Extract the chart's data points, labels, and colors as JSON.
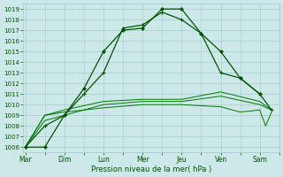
{
  "background_color": "#cce8e8",
  "grid_color": "#aacccc",
  "line_color_dark": "#005500",
  "line_color_mid": "#007700",
  "x_labels": [
    "Mar",
    "Dim",
    "Lun",
    "Mer",
    "Jeu",
    "Ven",
    "Sam"
  ],
  "xlabel": "Pression niveau de la mer( hPa )",
  "ylim": [
    1005.5,
    1019.5
  ],
  "yticks": [
    1006,
    1007,
    1008,
    1009,
    1010,
    1011,
    1012,
    1013,
    1014,
    1015,
    1016,
    1017,
    1018,
    1019
  ],
  "xlim": [
    -0.05,
    6.5
  ],
  "x_tick_pos": [
    0,
    1,
    2,
    3,
    4,
    5,
    6
  ],
  "series1_x": [
    0,
    0.5,
    1,
    1.5,
    2,
    2.5,
    3,
    3.5,
    4,
    4.5,
    5,
    5.5,
    6
  ],
  "series1_y": [
    1006,
    1006,
    1009,
    1011.5,
    1015,
    1017,
    1017.2,
    1019,
    1019,
    1016.7,
    1015,
    1012.5,
    1011
  ],
  "series2_x": [
    0,
    0.5,
    1,
    1.5,
    2,
    2.5,
    3,
    3.5,
    4,
    4.5,
    5,
    5.5,
    6,
    6.3
  ],
  "series2_y": [
    1006,
    1008,
    1009,
    1011,
    1013,
    1017.2,
    1017.5,
    1018.7,
    1018,
    1016.7,
    1013,
    1012.5,
    1011,
    1009.5
  ],
  "series3_x": [
    0,
    0.5,
    1,
    2,
    3,
    4,
    5,
    6,
    6.3
  ],
  "series3_y": [
    1006,
    1008.5,
    1009,
    1010,
    1010.3,
    1010.3,
    1010.8,
    1010,
    1009.5
  ],
  "series4_x": [
    0,
    0.5,
    1,
    2,
    3,
    4,
    5,
    6,
    6.3
  ],
  "series4_y": [
    1006,
    1009,
    1009.5,
    1010.3,
    1010.5,
    1010.5,
    1011.2,
    1010.3,
    1009.5
  ],
  "series5_x": [
    0,
    0.5,
    1,
    2,
    3,
    4,
    5,
    5.5,
    6,
    6.15,
    6.3
  ],
  "series5_y": [
    1006,
    1009,
    1009.3,
    1009.7,
    1010.0,
    1010.0,
    1009.8,
    1009.3,
    1009.5,
    1008.0,
    1009.3
  ]
}
